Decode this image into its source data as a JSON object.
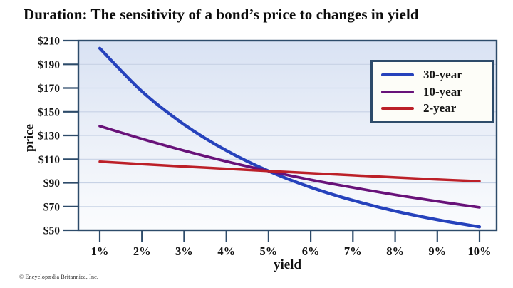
{
  "title": "Duration: The sensitivity of a bond’s price to changes in yield",
  "chart_data": {
    "type": "line",
    "x": [
      1,
      2,
      3,
      4,
      5,
      6,
      7,
      8,
      9,
      10
    ],
    "x_tick_labels": [
      "1%",
      "2%",
      "3%",
      "4%",
      "5%",
      "6%",
      "7%",
      "8%",
      "9%",
      "10%"
    ],
    "y_ticks": [
      50,
      70,
      90,
      110,
      130,
      150,
      170,
      190,
      210
    ],
    "y_tick_labels": [
      "$50",
      "$70",
      "$90",
      "$110",
      "$130",
      "$150",
      "$170",
      "$190",
      "$210"
    ],
    "xlabel": "yield",
    "ylabel": "price",
    "ylim": [
      50,
      210
    ],
    "grid": "horizontal",
    "legend_position": "top-right",
    "series": [
      {
        "name": "30-year",
        "color": "#2642bc",
        "width": 4.3,
        "values": [
          203.5,
          167.2,
          139.2,
          117.3,
          100.0,
          86.2,
          75.2,
          66.2,
          58.9,
          52.8
        ]
      },
      {
        "name": "10-year",
        "color": "#681279",
        "width": 3.7,
        "values": [
          137.9,
          127.1,
          117.2,
          108.1,
          100.0,
          92.6,
          86.0,
          79.9,
          74.4,
          69.3
        ]
      },
      {
        "name": "2-year",
        "color": "#bc2028",
        "width": 3.5,
        "values": [
          107.9,
          105.8,
          103.8,
          101.9,
          100.0,
          98.2,
          96.4,
          94.6,
          92.9,
          91.3
        ]
      }
    ]
  },
  "footer": {
    "copyright": "© Encyclopædia Britannica, Inc."
  },
  "colors": {
    "frame": "#2d4b6a",
    "gridline": "#c7d2e5",
    "plot_bg_top": "#d9e2f3",
    "plot_bg_mid": "#eef2f9",
    "plot_bg_bottom": "#fbfcfe",
    "page_bg": "#ffffff",
    "legend_bg": "#fdfdf8"
  }
}
